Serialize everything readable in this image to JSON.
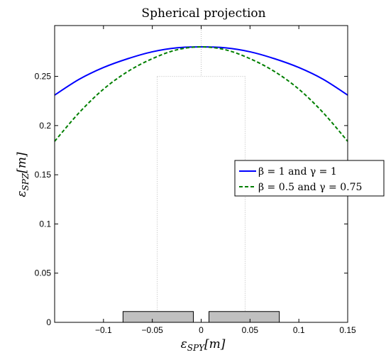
{
  "chart_data": {
    "type": "line",
    "title": "Spherical projection",
    "xlabel": "εSPY[m]",
    "ylabel": "εSPZ[m]",
    "xlim": [
      -0.15,
      0.15
    ],
    "ylim": [
      0,
      0.28
    ],
    "xticks": [
      "-0.1",
      "-0.05",
      "0",
      "0.05",
      "0.1",
      "0.15"
    ],
    "yticks": [
      "0",
      "0.05",
      "0.1",
      "0.15",
      "0.2",
      "0.25"
    ],
    "grid": false,
    "legend_position": "right",
    "series": [
      {
        "name": "β = 1 and γ = 1",
        "color": "#0000ff",
        "style": "solid",
        "x": [
          -0.15,
          -0.125,
          -0.1,
          -0.075,
          -0.05,
          -0.025,
          0,
          0.025,
          0.05,
          0.075,
          0.1,
          0.125,
          0.15
        ],
        "y": [
          0.231,
          0.247,
          0.259,
          0.268,
          0.275,
          0.279,
          0.28,
          0.279,
          0.275,
          0.268,
          0.259,
          0.247,
          0.231
        ]
      },
      {
        "name": "β = 0.5 and γ = 0.75",
        "color": "#007f00",
        "style": "dashed",
        "x": [
          -0.15,
          -0.125,
          -0.1,
          -0.075,
          -0.05,
          -0.025,
          0,
          0.025,
          0.05,
          0.075,
          0.1,
          0.125,
          0.15
        ],
        "y": [
          0.184,
          0.213,
          0.237,
          0.255,
          0.268,
          0.277,
          0.28,
          0.277,
          0.268,
          0.255,
          0.237,
          0.213,
          0.184
        ]
      }
    ],
    "annotations": {
      "dotted_outline": {
        "x": [
          -0.045,
          0.045
        ],
        "y": [
          0,
          0.25
        ],
        "center_line_x": 0,
        "color": "#bbbbbb"
      },
      "blocks": [
        {
          "x": [
            -0.08,
            -0.008
          ],
          "y": [
            0,
            0.011
          ],
          "color": "#c0c0c0"
        },
        {
          "x": [
            0.008,
            0.08
          ],
          "y": [
            0,
            0.011
          ],
          "color": "#c0c0c0"
        }
      ]
    }
  }
}
